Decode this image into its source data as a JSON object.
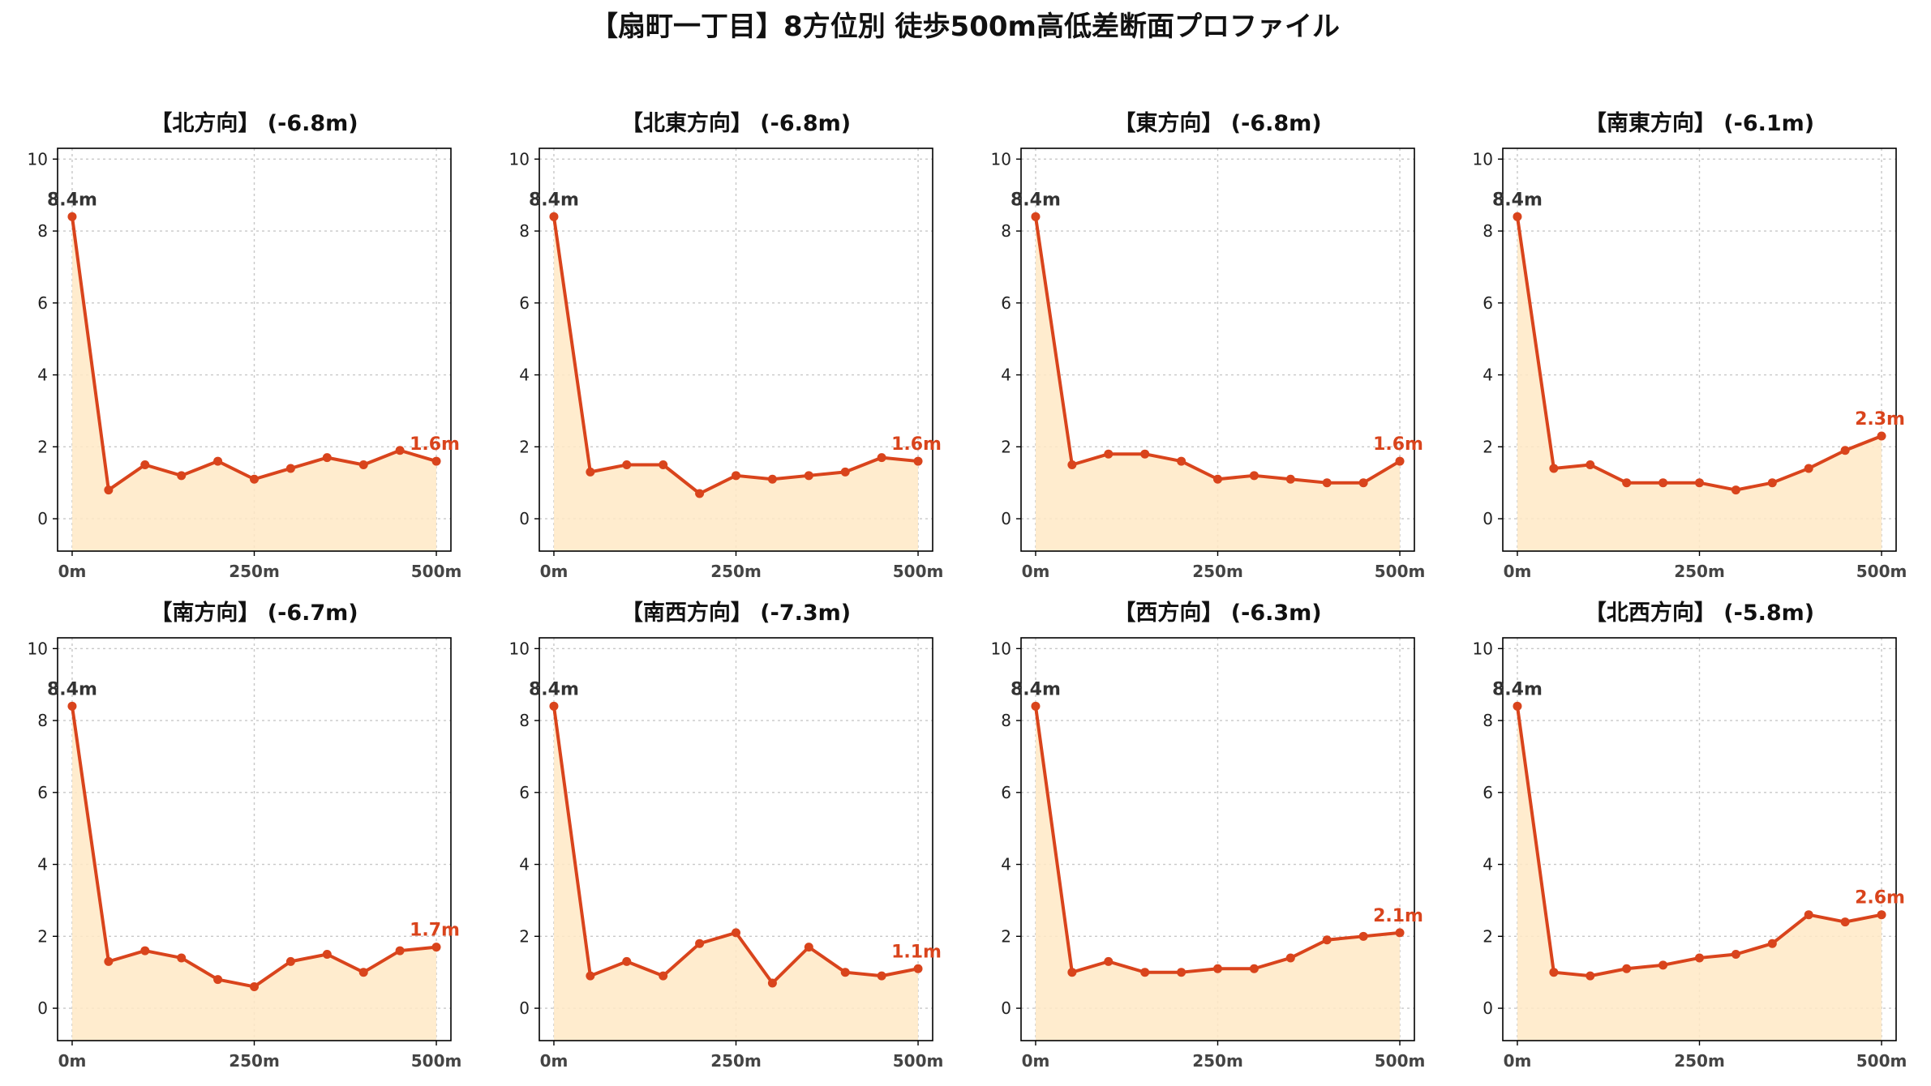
{
  "page": {
    "title": "【扇町一丁目】8方位別 徒歩500m高低差断面プロファイル"
  },
  "colors": {
    "line": "#d9441c",
    "fill": "#ffe9c6",
    "start_label": "#333333",
    "end_label": "#d9441c"
  },
  "chart_data": [
    {
      "type": "line",
      "title": "【北方向】 (-6.8m)",
      "x": [
        0,
        50,
        100,
        150,
        200,
        250,
        300,
        350,
        400,
        450,
        500
      ],
      "y": [
        8.4,
        0.8,
        1.5,
        1.2,
        1.6,
        1.1,
        1.4,
        1.7,
        1.5,
        1.9,
        1.6
      ],
      "start_label": "8.4m",
      "end_label": "1.6m",
      "xticks": [
        "0m",
        "250m",
        "500m"
      ],
      "yticks": [
        "0",
        "2",
        "4",
        "6",
        "8",
        "10"
      ],
      "xlim": [
        -20,
        520
      ],
      "ylim": [
        -0.9,
        10.3
      ],
      "grid": true,
      "fill_under": true
    },
    {
      "type": "line",
      "title": "【北東方向】 (-6.8m)",
      "x": [
        0,
        50,
        100,
        150,
        200,
        250,
        300,
        350,
        400,
        450,
        500
      ],
      "y": [
        8.4,
        1.3,
        1.5,
        1.5,
        0.7,
        1.2,
        1.1,
        1.2,
        1.3,
        1.7,
        1.6
      ],
      "start_label": "8.4m",
      "end_label": "1.6m",
      "xticks": [
        "0m",
        "250m",
        "500m"
      ],
      "yticks": [
        "0",
        "2",
        "4",
        "6",
        "8",
        "10"
      ],
      "xlim": [
        -20,
        520
      ],
      "ylim": [
        -0.9,
        10.3
      ],
      "grid": true,
      "fill_under": true
    },
    {
      "type": "line",
      "title": "【東方向】 (-6.8m)",
      "x": [
        0,
        50,
        100,
        150,
        200,
        250,
        300,
        350,
        400,
        450,
        500
      ],
      "y": [
        8.4,
        1.5,
        1.8,
        1.8,
        1.6,
        1.1,
        1.2,
        1.1,
        1.0,
        1.0,
        1.6
      ],
      "start_label": "8.4m",
      "end_label": "1.6m",
      "xticks": [
        "0m",
        "250m",
        "500m"
      ],
      "yticks": [
        "0",
        "2",
        "4",
        "6",
        "8",
        "10"
      ],
      "xlim": [
        -20,
        520
      ],
      "ylim": [
        -0.9,
        10.3
      ],
      "grid": true,
      "fill_under": true
    },
    {
      "type": "line",
      "title": "【南東方向】 (-6.1m)",
      "x": [
        0,
        50,
        100,
        150,
        200,
        250,
        300,
        350,
        400,
        450,
        500
      ],
      "y": [
        8.4,
        1.4,
        1.5,
        1.0,
        1.0,
        1.0,
        0.8,
        1.0,
        1.4,
        1.9,
        2.3
      ],
      "start_label": "8.4m",
      "end_label": "2.3m",
      "xticks": [
        "0m",
        "250m",
        "500m"
      ],
      "yticks": [
        "0",
        "2",
        "4",
        "6",
        "8",
        "10"
      ],
      "xlim": [
        -20,
        520
      ],
      "ylim": [
        -0.9,
        10.3
      ],
      "grid": true,
      "fill_under": true
    },
    {
      "type": "line",
      "title": "【南方向】 (-6.7m)",
      "x": [
        0,
        50,
        100,
        150,
        200,
        250,
        300,
        350,
        400,
        450,
        500
      ],
      "y": [
        8.4,
        1.3,
        1.6,
        1.4,
        0.8,
        0.6,
        1.3,
        1.5,
        1.0,
        1.6,
        1.7
      ],
      "start_label": "8.4m",
      "end_label": "1.7m",
      "xticks": [
        "0m",
        "250m",
        "500m"
      ],
      "yticks": [
        "0",
        "2",
        "4",
        "6",
        "8",
        "10"
      ],
      "xlim": [
        -20,
        520
      ],
      "ylim": [
        -0.9,
        10.3
      ],
      "grid": true,
      "fill_under": true
    },
    {
      "type": "line",
      "title": "【南西方向】 (-7.3m)",
      "x": [
        0,
        50,
        100,
        150,
        200,
        250,
        300,
        350,
        400,
        450,
        500
      ],
      "y": [
        8.4,
        0.9,
        1.3,
        0.9,
        1.8,
        2.1,
        0.7,
        1.7,
        1.0,
        0.9,
        1.1
      ],
      "start_label": "8.4m",
      "end_label": "1.1m",
      "xticks": [
        "0m",
        "250m",
        "500m"
      ],
      "yticks": [
        "0",
        "2",
        "4",
        "6",
        "8",
        "10"
      ],
      "xlim": [
        -20,
        520
      ],
      "ylim": [
        -0.9,
        10.3
      ],
      "grid": true,
      "fill_under": true
    },
    {
      "type": "line",
      "title": "【西方向】 (-6.3m)",
      "x": [
        0,
        50,
        100,
        150,
        200,
        250,
        300,
        350,
        400,
        450,
        500
      ],
      "y": [
        8.4,
        1.0,
        1.3,
        1.0,
        1.0,
        1.1,
        1.1,
        1.4,
        1.9,
        2.0,
        2.1
      ],
      "start_label": "8.4m",
      "end_label": "2.1m",
      "xticks": [
        "0m",
        "250m",
        "500m"
      ],
      "yticks": [
        "0",
        "2",
        "4",
        "6",
        "8",
        "10"
      ],
      "xlim": [
        -20,
        520
      ],
      "ylim": [
        -0.9,
        10.3
      ],
      "grid": true,
      "fill_under": true
    },
    {
      "type": "line",
      "title": "【北西方向】 (-5.8m)",
      "x": [
        0,
        50,
        100,
        150,
        200,
        250,
        300,
        350,
        400,
        450,
        500
      ],
      "y": [
        8.4,
        1.0,
        0.9,
        1.1,
        1.2,
        1.4,
        1.5,
        1.8,
        2.6,
        2.4,
        2.6
      ],
      "start_label": "8.4m",
      "end_label": "2.6m",
      "xticks": [
        "0m",
        "250m",
        "500m"
      ],
      "yticks": [
        "0",
        "2",
        "4",
        "6",
        "8",
        "10"
      ],
      "xlim": [
        -20,
        520
      ],
      "ylim": [
        -0.9,
        10.3
      ],
      "grid": true,
      "fill_under": true
    }
  ]
}
